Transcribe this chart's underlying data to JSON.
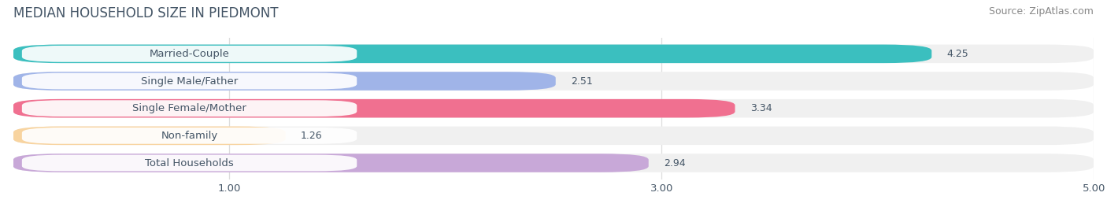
{
  "title": "MEDIAN HOUSEHOLD SIZE IN PIEDMONT",
  "source": "Source: ZipAtlas.com",
  "categories": [
    "Married-Couple",
    "Single Male/Father",
    "Single Female/Mother",
    "Non-family",
    "Total Households"
  ],
  "values": [
    4.25,
    2.51,
    3.34,
    1.26,
    2.94
  ],
  "bar_colors": [
    "#3bbfbf",
    "#a0b4e8",
    "#f07090",
    "#f8d4a0",
    "#c8a8d8"
  ],
  "bg_color": "#ffffff",
  "row_bg_color": "#f0f0f0",
  "xlim_min": 0.0,
  "xlim_max": 5.0,
  "xticks": [
    1.0,
    3.0,
    5.0
  ],
  "xtick_labels": [
    "1.00",
    "3.00",
    "5.00"
  ],
  "title_fontsize": 12,
  "label_fontsize": 9.5,
  "value_fontsize": 9,
  "source_fontsize": 9,
  "title_color": "#445566",
  "label_color": "#445566",
  "value_color": "#445566",
  "source_color": "#888888",
  "grid_color": "#dddddd"
}
